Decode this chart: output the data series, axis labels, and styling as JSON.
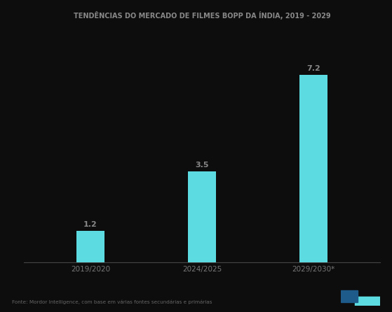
{
  "title": "TENDÊNCIAS DO MERCADO DE FILMES BOPP DA ÍNDIA, 2019 - 2029",
  "categories": [
    "2019/2020",
    "2024/2025",
    "2029/2030*"
  ],
  "values": [
    1.2,
    3.5,
    7.2
  ],
  "bar_color": "#5cdce0",
  "label_color": "#888888",
  "bar_labels": [
    "1.2",
    "3.5",
    "7.2"
  ],
  "background_color": "#0d0d0d",
  "title_color": "#888888",
  "axis_label_color": "#777777",
  "source_text": "Fonte: Mordor Intelligence, com base em várias fontes secundárias e primárias",
  "ylim": [
    0,
    9
  ],
  "bar_width": 0.25,
  "logo_color1": "#1e5a8a",
  "logo_color2": "#5cdce0"
}
